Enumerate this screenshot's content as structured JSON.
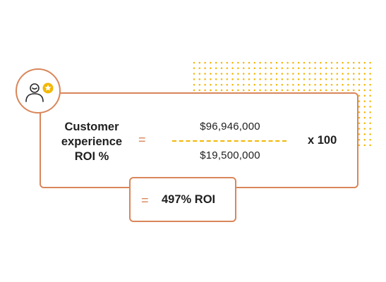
{
  "colors": {
    "accent_orange": "#d9865a",
    "accent_yellow": "#f2b705",
    "text": "#1f1f1f"
  },
  "formula": {
    "label_lines": [
      "Customer",
      "experience",
      "ROI %"
    ],
    "equals_sign": "=",
    "numerator": "$96,946,000",
    "denominator": "$19,500,000",
    "multiplier": "x 100"
  },
  "result": {
    "equals_sign": "=",
    "value": "497% ROI"
  },
  "icons": {
    "avatar": "person-icon",
    "badge": "star-badge-icon",
    "decoration": "dot-grid"
  }
}
